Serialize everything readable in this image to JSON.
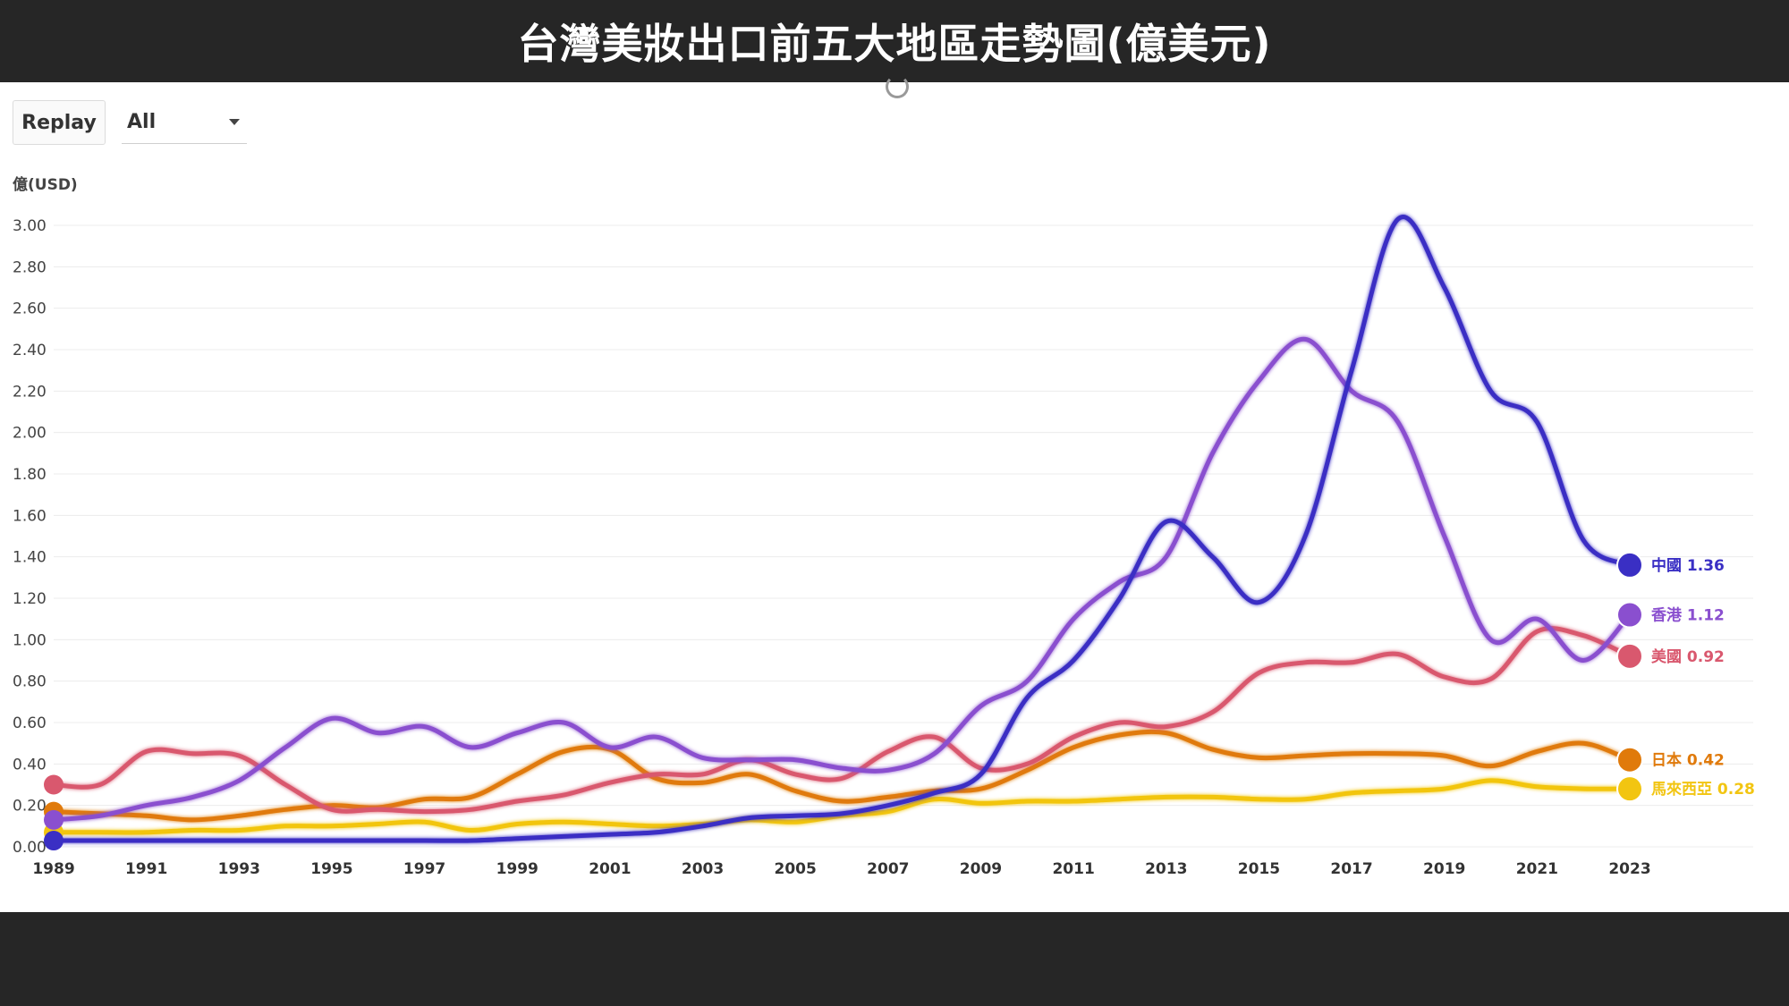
{
  "header": {
    "title": "台灣美妝出口前五大地區走勢圖(億美元)"
  },
  "controls": {
    "replay_label": "Replay",
    "region_select_value": "All"
  },
  "chart_data": {
    "type": "line",
    "title": "台灣美妝出口前五大地區走勢圖(億美元)",
    "ylabel": "億(USD)",
    "xlabel": "",
    "ylim": [
      0,
      3.0
    ],
    "xlim": [
      1989,
      2023
    ],
    "grid": true,
    "legend": "end-of-line labels",
    "y_ticks": [
      "0.00",
      "0.20",
      "0.40",
      "0.60",
      "0.80",
      "1.00",
      "1.20",
      "1.40",
      "1.60",
      "1.80",
      "2.00",
      "2.20",
      "2.40",
      "2.60",
      "2.80",
      "3.00"
    ],
    "x_ticks": [
      "1989",
      "1991",
      "1993",
      "1995",
      "1997",
      "1999",
      "2001",
      "2003",
      "2005",
      "2007",
      "2009",
      "2011",
      "2013",
      "2015",
      "2017",
      "2019",
      "2021",
      "2023"
    ],
    "x": [
      1989,
      1990,
      1991,
      1992,
      1993,
      1994,
      1995,
      1996,
      1997,
      1998,
      1999,
      2000,
      2001,
      2002,
      2003,
      2004,
      2005,
      2006,
      2007,
      2008,
      2009,
      2010,
      2011,
      2012,
      2013,
      2014,
      2015,
      2016,
      2017,
      2018,
      2019,
      2020,
      2021,
      2022,
      2023
    ],
    "series": [
      {
        "name": "中國",
        "end_label": "中國 1.36",
        "color": "#3a2fc4",
        "values": [
          0.03,
          0.03,
          0.03,
          0.03,
          0.03,
          0.03,
          0.03,
          0.03,
          0.03,
          0.03,
          0.04,
          0.05,
          0.06,
          0.07,
          0.1,
          0.14,
          0.15,
          0.16,
          0.2,
          0.26,
          0.35,
          0.72,
          0.9,
          1.2,
          1.57,
          1.4,
          1.18,
          1.5,
          2.3,
          3.03,
          2.7,
          2.2,
          2.05,
          1.48,
          1.36
        ]
      },
      {
        "name": "香港",
        "end_label": "香港 1.12",
        "color": "#8a4fcf",
        "values": [
          0.13,
          0.15,
          0.2,
          0.24,
          0.32,
          0.48,
          0.62,
          0.55,
          0.58,
          0.48,
          0.55,
          0.6,
          0.48,
          0.53,
          0.43,
          0.42,
          0.42,
          0.38,
          0.37,
          0.45,
          0.68,
          0.8,
          1.1,
          1.28,
          1.4,
          1.9,
          2.25,
          2.45,
          2.2,
          2.05,
          1.5,
          1.0,
          1.1,
          0.9,
          1.12
        ]
      },
      {
        "name": "美國",
        "end_label": "美國 0.92",
        "color": "#d9586e",
        "values": [
          0.3,
          0.3,
          0.46,
          0.45,
          0.44,
          0.3,
          0.18,
          0.18,
          0.17,
          0.18,
          0.22,
          0.25,
          0.31,
          0.35,
          0.35,
          0.42,
          0.35,
          0.33,
          0.46,
          0.53,
          0.38,
          0.4,
          0.53,
          0.6,
          0.58,
          0.65,
          0.84,
          0.89,
          0.89,
          0.93,
          0.82,
          0.81,
          1.04,
          1.02,
          0.92
        ]
      },
      {
        "name": "日本",
        "end_label": "日本 0.42",
        "color": "#e07a0b",
        "values": [
          0.17,
          0.16,
          0.15,
          0.13,
          0.15,
          0.18,
          0.2,
          0.19,
          0.23,
          0.24,
          0.35,
          0.46,
          0.47,
          0.33,
          0.31,
          0.35,
          0.27,
          0.22,
          0.24,
          0.27,
          0.28,
          0.37,
          0.48,
          0.54,
          0.55,
          0.47,
          0.43,
          0.44,
          0.45,
          0.45,
          0.44,
          0.39,
          0.46,
          0.5,
          0.42
        ]
      },
      {
        "name": "馬來西亞",
        "end_label": "馬來西亞 0.28",
        "color": "#f2c511",
        "values": [
          0.07,
          0.07,
          0.07,
          0.08,
          0.08,
          0.1,
          0.1,
          0.11,
          0.12,
          0.08,
          0.11,
          0.12,
          0.11,
          0.1,
          0.11,
          0.13,
          0.12,
          0.15,
          0.17,
          0.23,
          0.21,
          0.22,
          0.22,
          0.23,
          0.24,
          0.24,
          0.23,
          0.23,
          0.26,
          0.27,
          0.28,
          0.32,
          0.29,
          0.28,
          0.28
        ]
      }
    ]
  }
}
